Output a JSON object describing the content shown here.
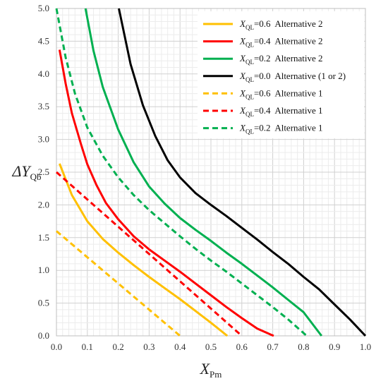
{
  "chart_data": {
    "type": "line",
    "xlabel": {
      "main": "X",
      "sub": "Pm"
    },
    "ylabel": {
      "main": "ΔY",
      "sub": "Qb"
    },
    "xlim": [
      0,
      1.0
    ],
    "ylim": [
      0,
      5.0
    ],
    "x_ticks": [
      "0.0",
      "0.1",
      "0.2",
      "0.3",
      "0.4",
      "0.5",
      "0.6",
      "0.7",
      "0.8",
      "0.9",
      "1.0"
    ],
    "y_ticks": [
      "0.0",
      "0.5",
      "1.0",
      "1.5",
      "2.0",
      "2.5",
      "3.0",
      "3.5",
      "4.0",
      "4.5",
      "5.0"
    ],
    "grid": true,
    "legend_position": "top-right",
    "series": [
      {
        "name": {
          "main": "X",
          "sub": "QL",
          "rest": "=0.6  Alternative 2"
        },
        "color": "#FFC000",
        "dash": false,
        "points": [
          [
            0.01,
            2.63
          ],
          [
            0.05,
            2.15
          ],
          [
            0.1,
            1.75
          ],
          [
            0.15,
            1.48
          ],
          [
            0.2,
            1.27
          ],
          [
            0.25,
            1.08
          ],
          [
            0.3,
            0.9
          ],
          [
            0.35,
            0.73
          ],
          [
            0.4,
            0.56
          ],
          [
            0.45,
            0.38
          ],
          [
            0.5,
            0.2
          ],
          [
            0.553,
            0.0
          ]
        ]
      },
      {
        "name": {
          "main": "X",
          "sub": "QL",
          "rest": "=0.4  Alternative 2"
        },
        "color": "#FF0000",
        "dash": false,
        "points": [
          [
            0.01,
            4.37
          ],
          [
            0.03,
            3.85
          ],
          [
            0.05,
            3.4
          ],
          [
            0.08,
            2.92
          ],
          [
            0.1,
            2.62
          ],
          [
            0.13,
            2.3
          ],
          [
            0.16,
            2.03
          ],
          [
            0.2,
            1.78
          ],
          [
            0.25,
            1.52
          ],
          [
            0.3,
            1.32
          ],
          [
            0.35,
            1.15
          ],
          [
            0.4,
            0.98
          ],
          [
            0.45,
            0.8
          ],
          [
            0.5,
            0.62
          ],
          [
            0.55,
            0.44
          ],
          [
            0.6,
            0.27
          ],
          [
            0.65,
            0.11
          ],
          [
            0.703,
            0.0
          ]
        ]
      },
      {
        "name": {
          "main": "X",
          "sub": "QL",
          "rest": "=0.2  Alternative 2"
        },
        "color": "#00B050",
        "dash": false,
        "points": [
          [
            0.094,
            5.0
          ],
          [
            0.12,
            4.35
          ],
          [
            0.15,
            3.8
          ],
          [
            0.2,
            3.15
          ],
          [
            0.25,
            2.65
          ],
          [
            0.3,
            2.28
          ],
          [
            0.35,
            2.02
          ],
          [
            0.4,
            1.8
          ],
          [
            0.45,
            1.62
          ],
          [
            0.5,
            1.45
          ],
          [
            0.55,
            1.27
          ],
          [
            0.6,
            1.1
          ],
          [
            0.65,
            0.92
          ],
          [
            0.7,
            0.74
          ],
          [
            0.75,
            0.55
          ],
          [
            0.8,
            0.36
          ],
          [
            0.858,
            0.0
          ]
        ]
      },
      {
        "name": {
          "main": "X",
          "sub": "QL",
          "rest": "=0.0  Alternative (1 or 2)"
        },
        "color": "#000000",
        "dash": false,
        "points": [
          [
            0.202,
            5.0
          ],
          [
            0.24,
            4.15
          ],
          [
            0.28,
            3.52
          ],
          [
            0.32,
            3.05
          ],
          [
            0.36,
            2.68
          ],
          [
            0.4,
            2.42
          ],
          [
            0.45,
            2.18
          ],
          [
            0.5,
            2.0
          ],
          [
            0.55,
            1.83
          ],
          [
            0.6,
            1.65
          ],
          [
            0.65,
            1.47
          ],
          [
            0.7,
            1.28
          ],
          [
            0.75,
            1.1
          ],
          [
            0.8,
            0.9
          ],
          [
            0.85,
            0.71
          ],
          [
            0.9,
            0.48
          ],
          [
            0.95,
            0.25
          ],
          [
            1.0,
            0.0
          ]
        ]
      },
      {
        "name": {
          "main": "X",
          "sub": "QL",
          "rest": "=0.6  Alternative 1"
        },
        "color": "#FFC000",
        "dash": true,
        "points": [
          [
            0.0,
            1.6
          ],
          [
            0.4,
            0.0
          ]
        ]
      },
      {
        "name": {
          "main": "X",
          "sub": "QL",
          "rest": "=0.4  Alternative 1"
        },
        "color": "#FF0000",
        "dash": true,
        "points": [
          [
            0.0,
            2.5
          ],
          [
            0.6,
            0.0
          ]
        ]
      },
      {
        "name": {
          "main": "X",
          "sub": "QL",
          "rest": "=0.2  Alternative 1"
        },
        "color": "#00B050",
        "dash": true,
        "points": [
          [
            0.0,
            5.0
          ],
          [
            0.03,
            4.25
          ],
          [
            0.06,
            3.7
          ],
          [
            0.1,
            3.18
          ],
          [
            0.15,
            2.75
          ],
          [
            0.2,
            2.42
          ],
          [
            0.25,
            2.15
          ],
          [
            0.3,
            1.92
          ],
          [
            0.35,
            1.72
          ],
          [
            0.4,
            1.52
          ],
          [
            0.45,
            1.33
          ],
          [
            0.5,
            1.15
          ],
          [
            0.55,
            0.98
          ],
          [
            0.6,
            0.8
          ],
          [
            0.65,
            0.62
          ],
          [
            0.7,
            0.44
          ],
          [
            0.75,
            0.25
          ],
          [
            0.81,
            0.0
          ]
        ]
      }
    ]
  }
}
